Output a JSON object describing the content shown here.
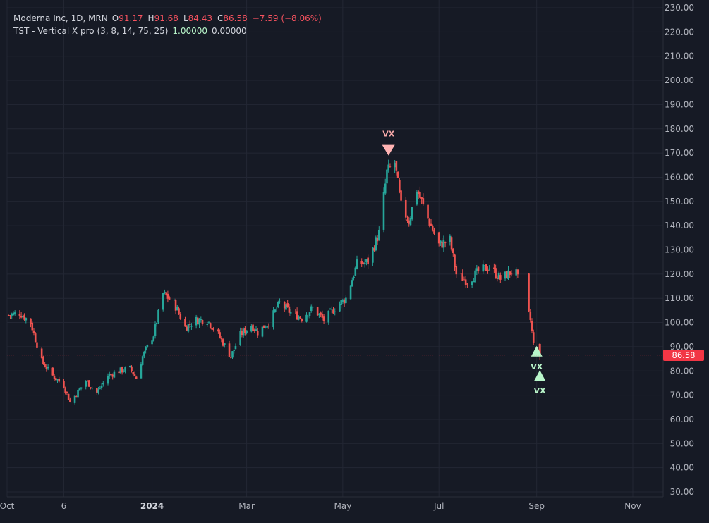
{
  "legend": {
    "symbol": "Moderna Inc, 1D, MRN",
    "open_label": "O",
    "open": "91.17",
    "high_label": "H",
    "high": "91.68",
    "low_label": "L",
    "low": "84.43",
    "close_label": "C",
    "close": "86.58",
    "change": "−7.59 (−8.06%)",
    "indicator": "TST - Vertical X pro (3, 8, 14, 75, 25)",
    "indicator_val1": "1.00000",
    "indicator_val2": "0.00000"
  },
  "last_price_tag": "86.58",
  "colors": {
    "background": "#161a25",
    "up": "#26a69a",
    "down": "#ef5350",
    "grid": "#232734",
    "price_tag": "#f23645",
    "buy_marker": "#b9f6ca",
    "sell_marker": "#ffb3b3"
  },
  "chart_data": {
    "type": "candlestick",
    "title": "Moderna Inc, 1D, MRN",
    "ylim": [
      30,
      230
    ],
    "y_ticks": [
      30,
      40,
      50,
      60,
      70,
      80,
      90,
      100,
      110,
      120,
      130,
      140,
      150,
      160,
      170,
      180,
      190,
      200,
      210,
      220,
      230
    ],
    "y_tick_labels": [
      "30.00",
      "40.00",
      "50.00",
      "60.00",
      "70.00",
      "80.00",
      "90.00",
      "100.00",
      "110.00",
      "120.00",
      "130.00",
      "140.00",
      "150.00",
      "160.00",
      "170.00",
      "180.00",
      "190.00",
      "200.00",
      "210.00",
      "220.00",
      "230.00"
    ],
    "x_ticks": [
      "Oct",
      "6",
      "2024",
      "Mar",
      "May",
      "Jul",
      "Sep",
      "Nov"
    ],
    "grid": true,
    "last_close": 86.58,
    "price_path": [
      {
        "date": "2023-10-02",
        "price": 103
      },
      {
        "date": "2023-10-09",
        "price": 104
      },
      {
        "date": "2023-10-16",
        "price": 100
      },
      {
        "date": "2023-10-23",
        "price": 84
      },
      {
        "date": "2023-10-30",
        "price": 78
      },
      {
        "date": "2023-11-06",
        "price": 74
      },
      {
        "date": "2023-11-10",
        "price": 67
      },
      {
        "date": "2023-11-20",
        "price": 76
      },
      {
        "date": "2023-11-27",
        "price": 71
      },
      {
        "date": "2023-12-04",
        "price": 78
      },
      {
        "date": "2023-12-11",
        "price": 80
      },
      {
        "date": "2023-12-18",
        "price": 81
      },
      {
        "date": "2023-12-22",
        "price": 77
      },
      {
        "date": "2023-12-26",
        "price": 86
      },
      {
        "date": "2024-01-02",
        "price": 95
      },
      {
        "date": "2024-01-08",
        "price": 112
      },
      {
        "date": "2024-01-15",
        "price": 108
      },
      {
        "date": "2024-01-22",
        "price": 98
      },
      {
        "date": "2024-01-29",
        "price": 101
      },
      {
        "date": "2024-02-05",
        "price": 101
      },
      {
        "date": "2024-02-12",
        "price": 95
      },
      {
        "date": "2024-02-20",
        "price": 86
      },
      {
        "date": "2024-02-26",
        "price": 95
      },
      {
        "date": "2024-03-04",
        "price": 99
      },
      {
        "date": "2024-03-08",
        "price": 96
      },
      {
        "date": "2024-03-15",
        "price": 100
      },
      {
        "date": "2024-03-22",
        "price": 108
      },
      {
        "date": "2024-03-29",
        "price": 104
      },
      {
        "date": "2024-04-05",
        "price": 102
      },
      {
        "date": "2024-04-12",
        "price": 106
      },
      {
        "date": "2024-04-19",
        "price": 101
      },
      {
        "date": "2024-04-26",
        "price": 106
      },
      {
        "date": "2024-05-03",
        "price": 110
      },
      {
        "date": "2024-05-10",
        "price": 124
      },
      {
        "date": "2024-05-17",
        "price": 125
      },
      {
        "date": "2024-05-24",
        "price": 137
      },
      {
        "date": "2024-05-29",
        "price": 162
      },
      {
        "date": "2024-06-03",
        "price": 166
      },
      {
        "date": "2024-06-07",
        "price": 148
      },
      {
        "date": "2024-06-12",
        "price": 142
      },
      {
        "date": "2024-06-17",
        "price": 155
      },
      {
        "date": "2024-06-24",
        "price": 143
      },
      {
        "date": "2024-07-01",
        "price": 132
      },
      {
        "date": "2024-07-08",
        "price": 134
      },
      {
        "date": "2024-07-12",
        "price": 120
      },
      {
        "date": "2024-07-19",
        "price": 117
      },
      {
        "date": "2024-07-26",
        "price": 121
      },
      {
        "date": "2024-08-02",
        "price": 123
      },
      {
        "date": "2024-08-09",
        "price": 118
      },
      {
        "date": "2024-08-16",
        "price": 121
      },
      {
        "date": "2024-08-19",
        "price": 120
      },
      {
        "date": "2024-08-28",
        "price": 101
      },
      {
        "date": "2024-08-30",
        "price": 91
      },
      {
        "date": "2024-09-02",
        "price": 86.58
      }
    ],
    "signals": [
      {
        "type": "sell",
        "label": "VX",
        "date": "2024-05-30",
        "price": 171
      },
      {
        "type": "buy",
        "label": "VX",
        "date": "2024-09-01",
        "price": 88
      },
      {
        "type": "buy",
        "label": "VX",
        "date": "2024-09-03",
        "price": 78
      }
    ]
  }
}
